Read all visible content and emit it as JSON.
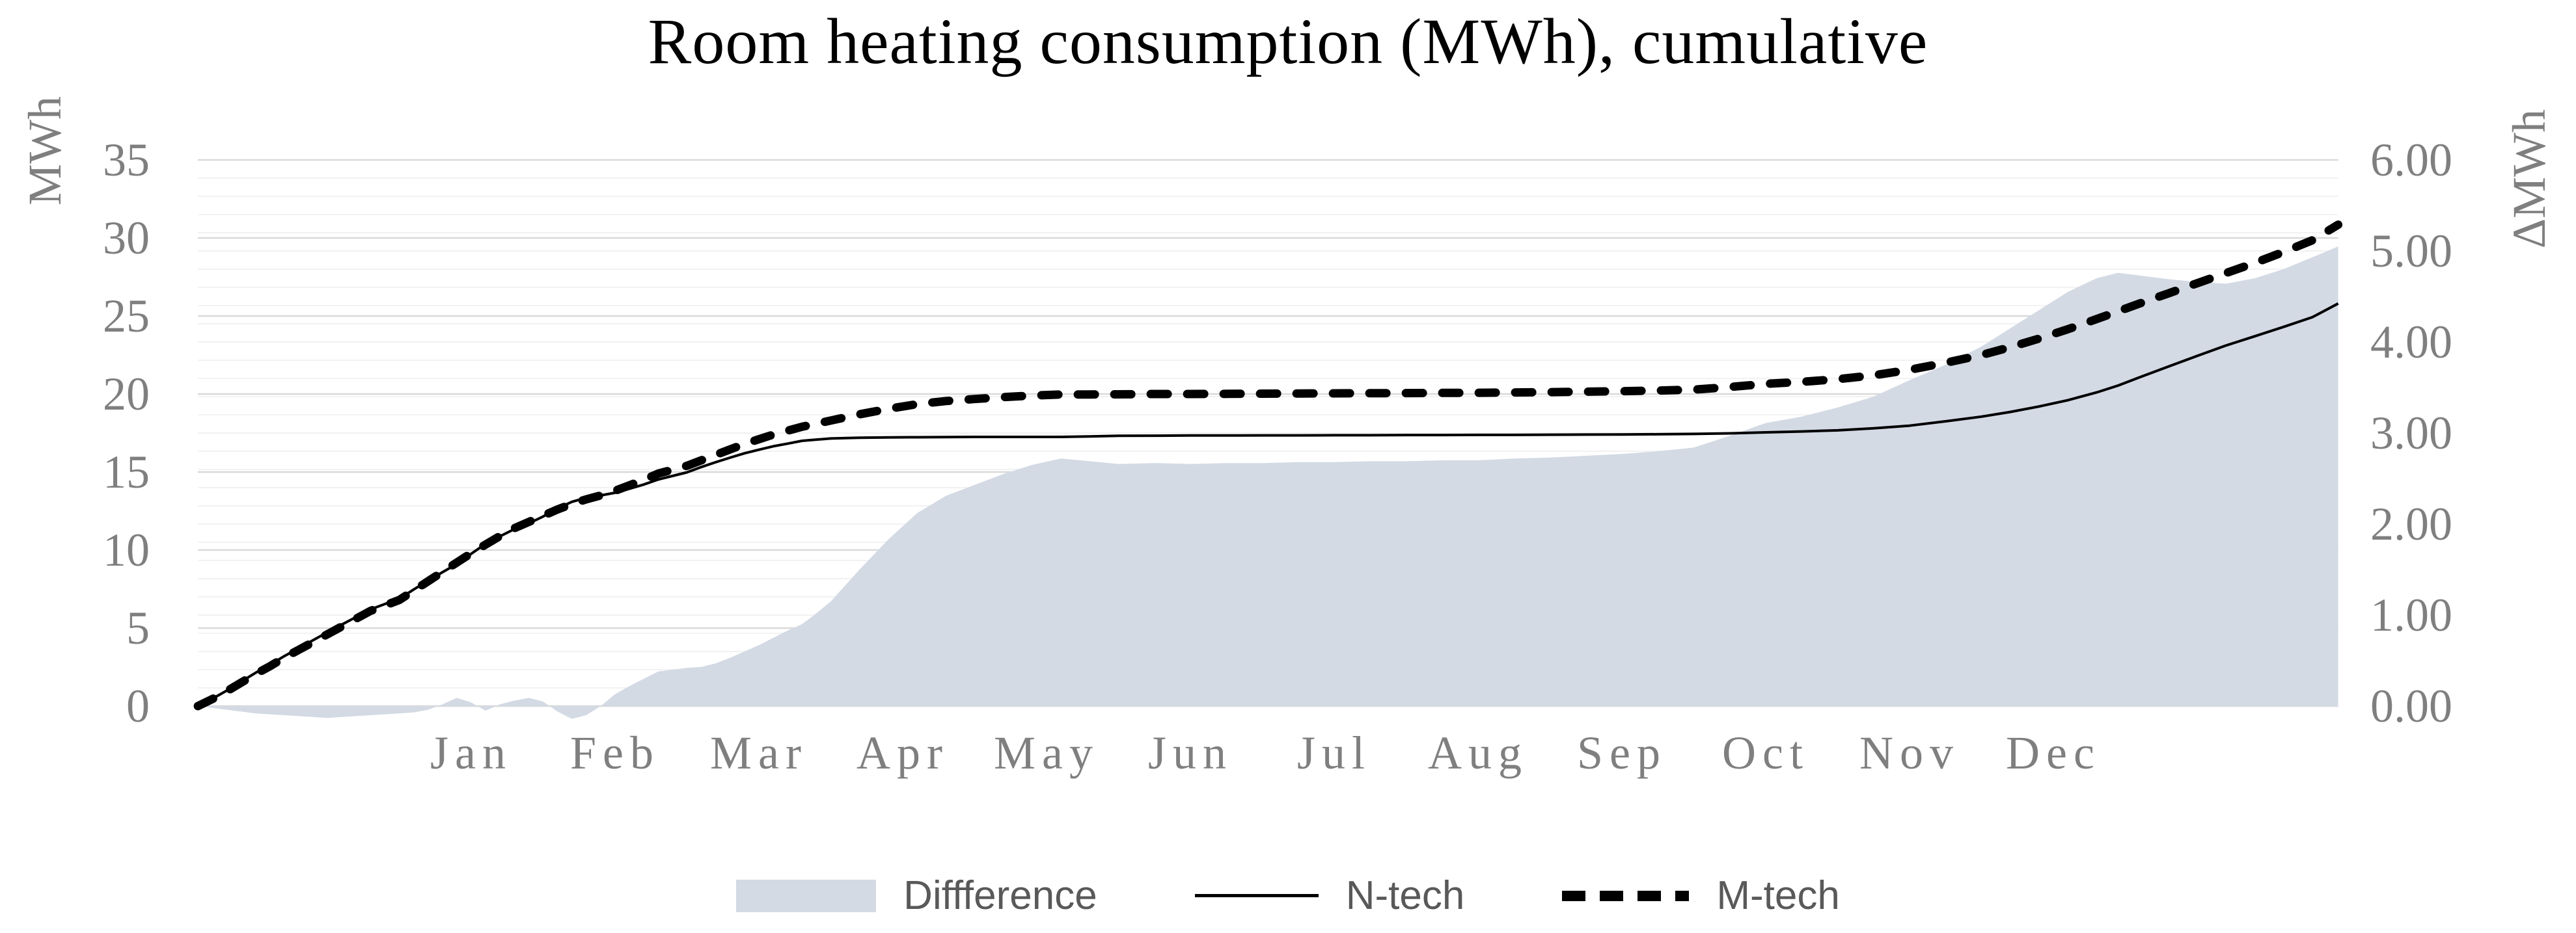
{
  "title": "Room heating consumption (MWh), cumulative",
  "left_axis": {
    "title": "MWh",
    "ticks": [
      "35",
      "30",
      "25",
      "20",
      "15",
      "10",
      "5",
      "0"
    ],
    "min": 0,
    "max": 35,
    "major_unit": 5
  },
  "right_axis": {
    "title": "ΔMWh",
    "ticks": [
      "6.00",
      "5.00",
      "4.00",
      "3.00",
      "2.00",
      "1.00",
      "0.00"
    ],
    "min": 0,
    "max": 6,
    "major_unit": 1,
    "minor_unit": 0.2
  },
  "x_axis": {
    "month_labels": [
      "Jan",
      "Feb",
      "Mar",
      "Apr",
      "May",
      "Jun",
      "Jul",
      "Aug",
      "Sep",
      "Oct",
      "Nov",
      "Dec"
    ],
    "note": "x values are months relative to Jan 1 (0 = Jan 1); axis spans ~Nov 19 to ~Feb 15 of following year",
    "start_offset_months": -1.4,
    "end_offset_months": 13.48
  },
  "legend": {
    "items": [
      {
        "label": "Diffference",
        "type": "area"
      },
      {
        "label": "N-tech",
        "type": "line"
      },
      {
        "label": "M-tech",
        "type": "dashed-line"
      }
    ]
  },
  "colors": {
    "area_fill": "#d3dae4",
    "line": "#000000",
    "dashed_line": "#000000",
    "grid_major": "#d9d9d9",
    "grid_minor": "#f2f2f2",
    "axis_text": "#7f7f7f",
    "legend_text": "#595959",
    "title_text": "#000000",
    "background": "#ffffff"
  },
  "chart_data": {
    "type": "area+line",
    "title": "Room heating consumption (MWh), cumulative",
    "xlabel": "",
    "ylabel_left": "MWh",
    "ylabel_right": "ΔMWh",
    "ylim_left": [
      0,
      35
    ],
    "ylim_right": [
      0,
      6
    ],
    "grid": "horizontal, minor every 0.2 (right axis), major every 5 (left axis)",
    "legend_position": "bottom-center",
    "x_months": [
      -1.4,
      -1.3,
      -1.2,
      -1.1,
      -1.0,
      -0.9,
      -0.8,
      -0.7,
      -0.6,
      -0.5,
      -0.4,
      -0.3,
      -0.2,
      -0.1,
      0.0,
      0.1,
      0.2,
      0.3,
      0.4,
      0.5,
      0.6,
      0.7,
      0.8,
      0.9,
      1.0,
      1.1,
      1.2,
      1.3,
      1.4,
      1.5,
      1.6,
      1.7,
      1.8,
      1.9,
      2.0,
      2.1,
      2.2,
      2.3,
      2.4,
      2.5,
      2.6,
      2.7,
      2.8,
      2.9,
      3.0,
      3.2,
      3.4,
      3.6,
      3.8,
      4.0,
      4.2,
      4.4,
      4.6,
      4.8,
      5.0,
      5.25,
      5.5,
      5.75,
      6.0,
      6.25,
      6.5,
      6.75,
      7.0,
      7.25,
      7.5,
      7.75,
      8.0,
      8.25,
      8.5,
      8.75,
      9.0,
      9.25,
      9.5,
      9.75,
      10.0,
      10.25,
      10.5,
      10.75,
      11.0,
      11.2,
      11.4,
      11.6,
      11.8,
      11.95,
      12.1,
      12.3,
      12.5,
      12.7,
      12.9,
      13.1,
      13.3,
      13.48
    ],
    "series": [
      {
        "name": "M-tech",
        "axis": "left",
        "style": "dashed",
        "values": [
          0,
          0.45,
          0.95,
          1.5,
          2.05,
          2.55,
          3.1,
          3.6,
          4.1,
          4.6,
          5.1,
          5.6,
          6.1,
          6.45,
          6.8,
          7.4,
          8.0,
          8.6,
          9.2,
          9.8,
          10.35,
          10.9,
          11.4,
          11.8,
          12.2,
          12.6,
          12.95,
          13.25,
          13.5,
          13.8,
          14.15,
          14.5,
          14.9,
          15.15,
          15.4,
          15.75,
          16.1,
          16.45,
          16.8,
          17.1,
          17.4,
          17.65,
          17.9,
          18.1,
          18.3,
          18.7,
          19.05,
          19.35,
          19.55,
          19.68,
          19.8,
          19.9,
          19.97,
          19.97,
          19.98,
          20.0,
          20.0,
          20.01,
          20.02,
          20.03,
          20.04,
          20.05,
          20.06,
          20.07,
          20.08,
          20.1,
          20.12,
          20.15,
          20.18,
          20.22,
          20.28,
          20.45,
          20.65,
          20.78,
          20.95,
          21.2,
          21.55,
          22.0,
          22.5,
          23.0,
          23.55,
          24.15,
          24.8,
          25.3,
          25.8,
          26.45,
          27.1,
          27.75,
          28.4,
          29.1,
          29.85,
          30.85
        ]
      },
      {
        "name": "N-tech",
        "axis": "left",
        "style": "solid",
        "values": [
          0,
          0.47,
          0.99,
          1.56,
          2.13,
          2.64,
          3.2,
          3.71,
          4.22,
          4.73,
          5.22,
          5.71,
          6.2,
          6.54,
          6.88,
          7.47,
          8.04,
          8.58,
          9.11,
          9.76,
          10.4,
          10.88,
          11.34,
          11.71,
          12.15,
          12.66,
          13.09,
          13.35,
          13.5,
          13.67,
          13.93,
          14.2,
          14.52,
          14.75,
          14.98,
          15.32,
          15.63,
          15.92,
          16.2,
          16.43,
          16.65,
          16.82,
          17.0,
          17.08,
          17.15,
          17.2,
          17.22,
          17.23,
          17.24,
          17.25,
          17.25,
          17.25,
          17.25,
          17.28,
          17.32,
          17.33,
          17.34,
          17.34,
          17.35,
          17.35,
          17.36,
          17.36,
          17.37,
          17.37,
          17.38,
          17.38,
          17.39,
          17.4,
          17.41,
          17.42,
          17.44,
          17.48,
          17.54,
          17.6,
          17.67,
          17.8,
          17.97,
          18.25,
          18.55,
          18.85,
          19.2,
          19.6,
          20.1,
          20.54,
          21.07,
          21.76,
          22.44,
          23.11,
          23.7,
          24.3,
          24.92,
          25.8
        ]
      },
      {
        "name": "Diffference",
        "axis": "right",
        "style": "area",
        "values": [
          0,
          -0.02,
          -0.04,
          -0.06,
          -0.08,
          -0.09,
          -0.1,
          -0.11,
          -0.12,
          -0.13,
          -0.12,
          -0.11,
          -0.1,
          -0.09,
          -0.08,
          -0.07,
          -0.04,
          0.02,
          0.09,
          0.04,
          -0.05,
          0.02,
          0.06,
          0.09,
          0.05,
          -0.06,
          -0.14,
          -0.1,
          0.0,
          0.13,
          0.22,
          0.3,
          0.38,
          0.4,
          0.42,
          0.43,
          0.47,
          0.53,
          0.6,
          0.67,
          0.75,
          0.83,
          0.9,
          1.02,
          1.15,
          1.5,
          1.83,
          2.12,
          2.31,
          2.43,
          2.55,
          2.65,
          2.72,
          2.69,
          2.66,
          2.67,
          2.66,
          2.67,
          2.67,
          2.68,
          2.68,
          2.69,
          2.69,
          2.7,
          2.7,
          2.72,
          2.73,
          2.75,
          2.77,
          2.8,
          2.84,
          2.97,
          3.11,
          3.18,
          3.28,
          3.4,
          3.58,
          3.75,
          3.95,
          4.15,
          4.35,
          4.55,
          4.7,
          4.76,
          4.73,
          4.69,
          4.66,
          4.64,
          4.7,
          4.8,
          4.93,
          5.05
        ]
      }
    ]
  }
}
